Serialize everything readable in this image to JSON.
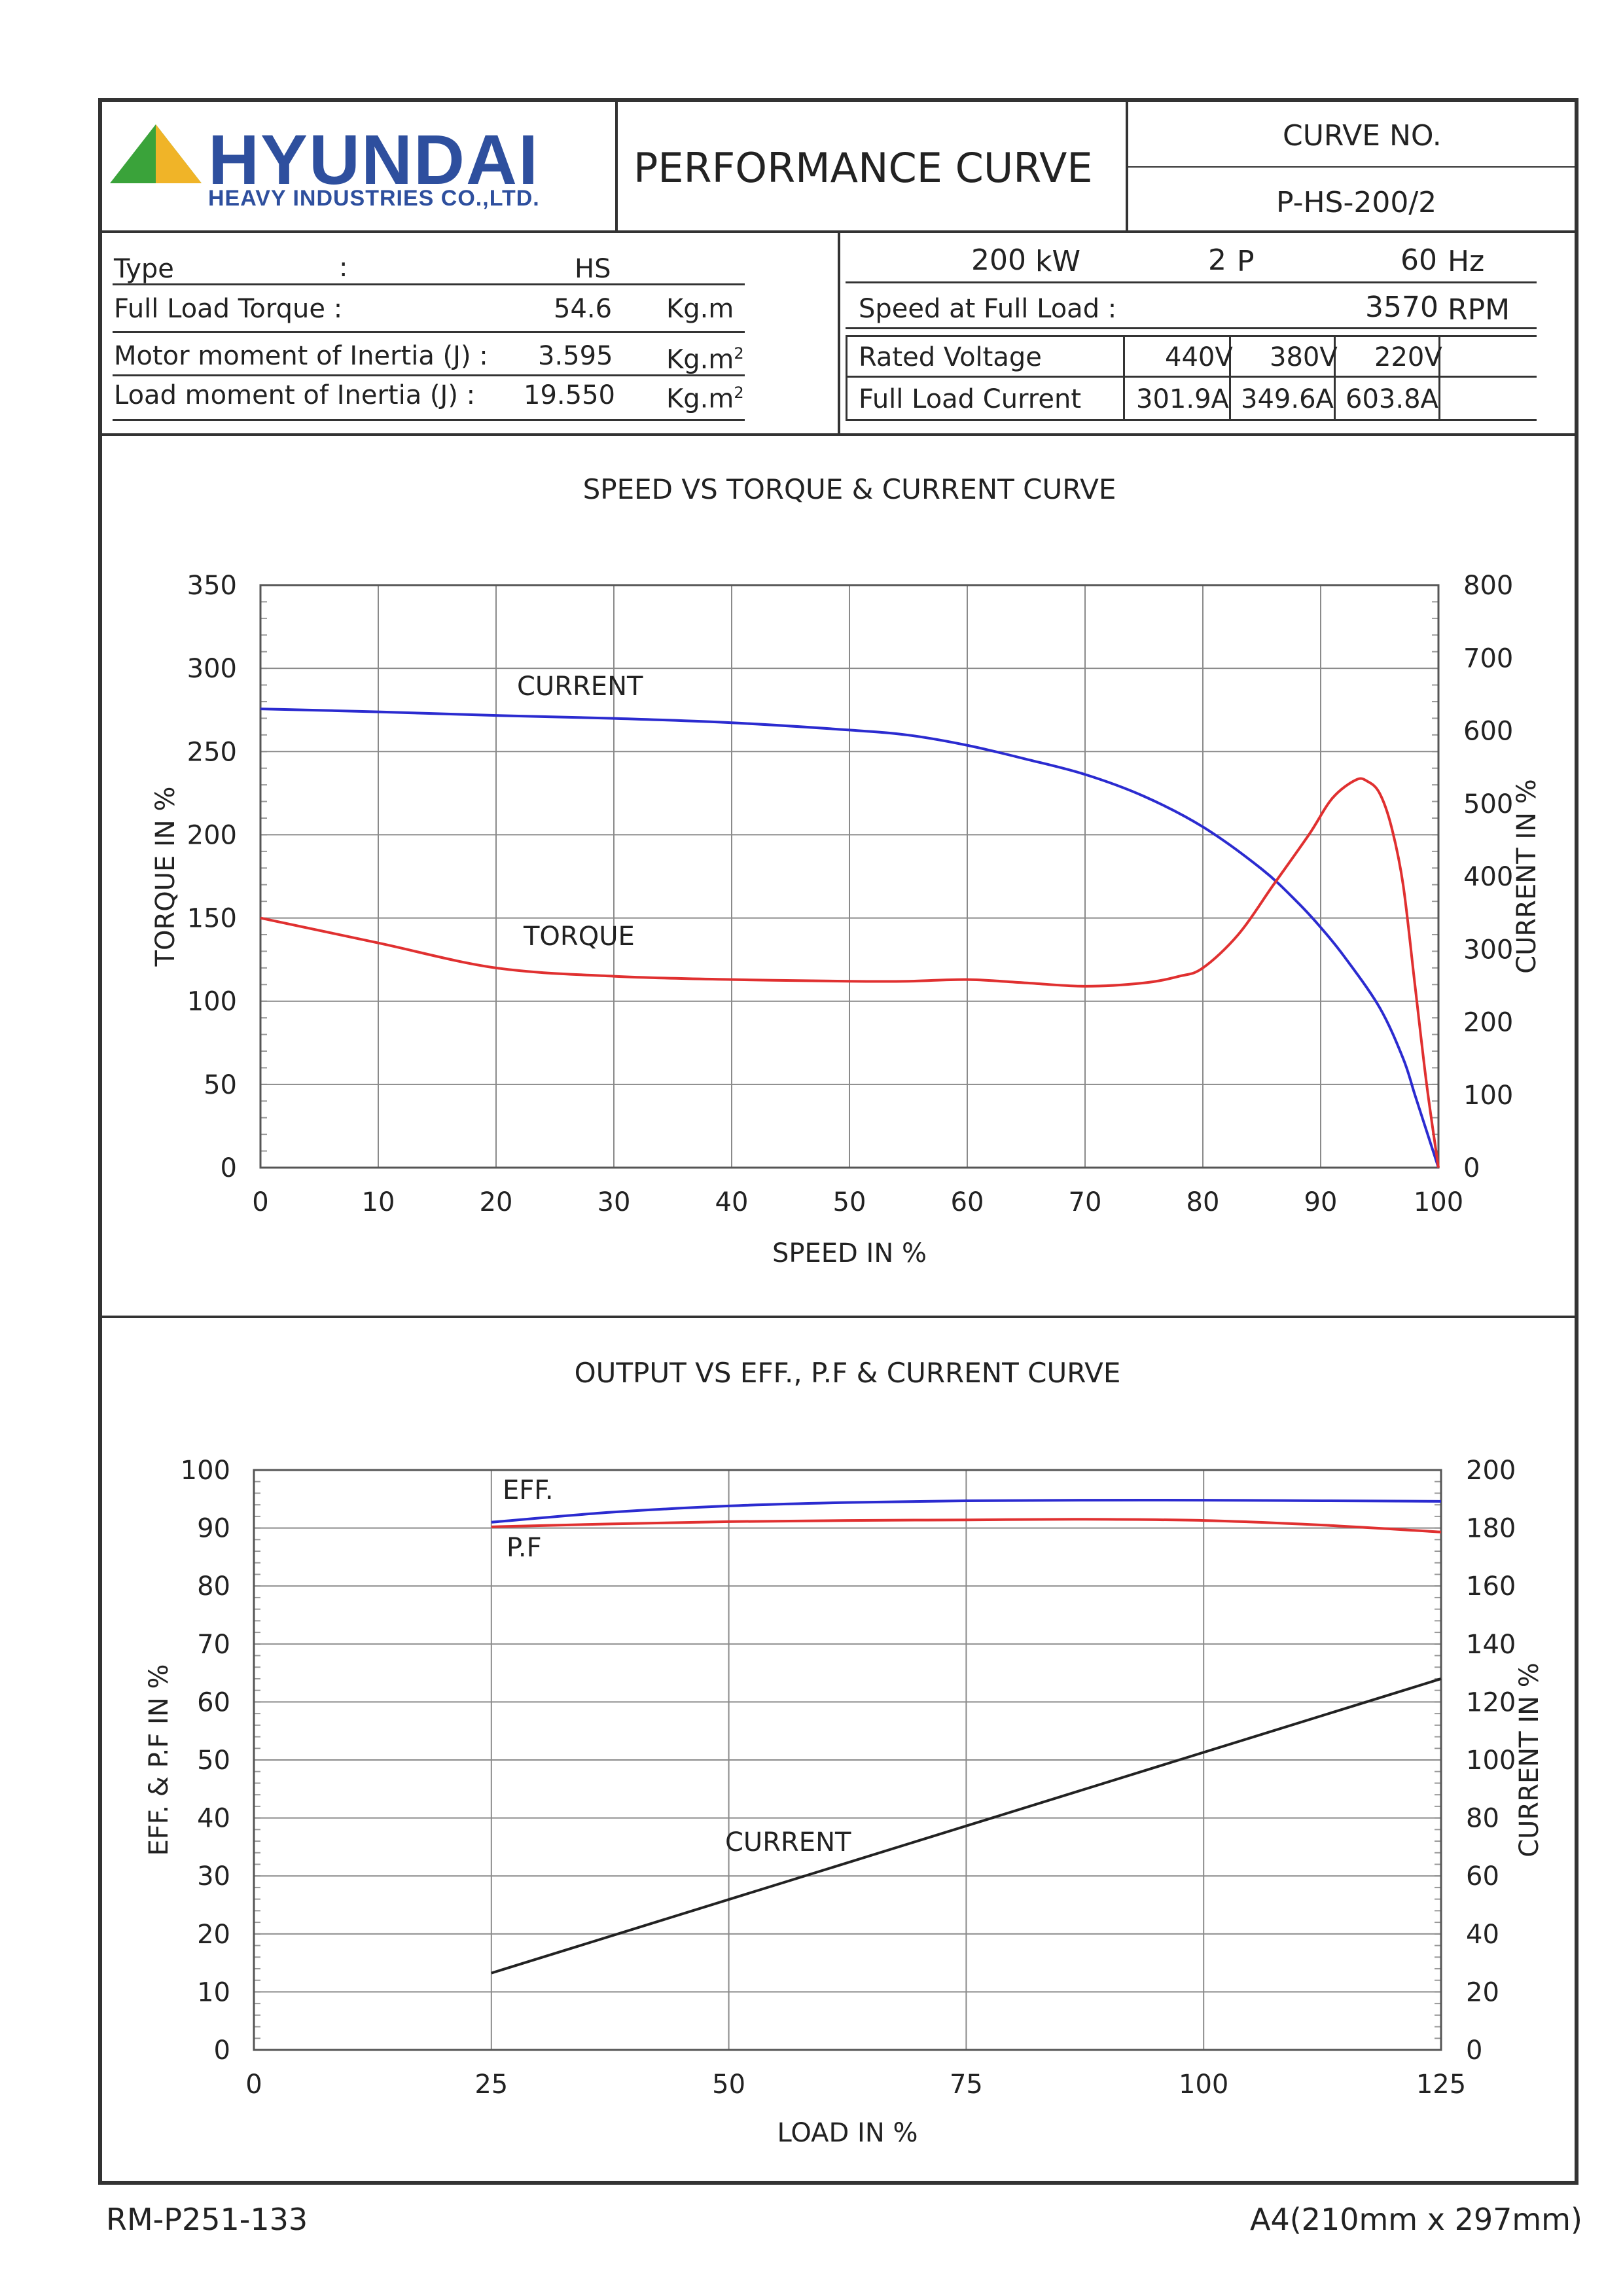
{
  "header": {
    "brand": "HYUNDAI",
    "brand_sub": "HEAVY INDUSTRIES CO.,LTD.",
    "doc_title": "PERFORMANCE CURVE",
    "curve_no_label": "CURVE NO.",
    "curve_no_value": "P-HS-200/2"
  },
  "specs_left": {
    "type_label": "Type",
    "type_colon": ":",
    "type_value": "HS",
    "torque_label": "Full Load Torque :",
    "torque_value": "54.6",
    "torque_unit": "Kg.m",
    "motor_inertia_label": "Motor moment of Inertia (J) :",
    "motor_inertia_value": "3.595",
    "load_inertia_label": "Load moment of Inertia (J) :",
    "load_inertia_value": "19.550",
    "inertia_unit": "Kg.m",
    "inertia_unit_sup": "2"
  },
  "specs_right": {
    "power_value": "200",
    "power_unit": "kW",
    "poles_value": "2",
    "poles_unit": "P",
    "freq_value": "60",
    "freq_unit": "Hz",
    "speed_label": "Speed at Full Load :",
    "speed_value": "3570",
    "speed_unit": "RPM",
    "voltage_label": "Rated Voltage",
    "current_label": "Full Load Current",
    "voltages": [
      "440V",
      "380V",
      "220V"
    ],
    "currents": [
      "301.9A",
      "349.6A",
      "603.8A"
    ]
  },
  "colors": {
    "blue_curve": "#2b2bd0",
    "red_curve": "#e03030",
    "black_curve": "#222222",
    "logo_blue": "#2e4f9e",
    "logo_green": "#3aa33a",
    "logo_yellow": "#f0b428"
  },
  "footer": {
    "left": "RM-P251-133",
    "right": "A4(210mm x 297mm)"
  },
  "chart_data": [
    {
      "type": "line",
      "title": "SPEED VS TORQUE & CURRENT CURVE",
      "xlabel": "SPEED IN %",
      "ylabel": "TORQUE IN %",
      "y2label": "CURRENT IN %",
      "xlim": [
        0,
        100
      ],
      "ylim": [
        0,
        350
      ],
      "y2lim": [
        0,
        800
      ],
      "xticks": [
        0,
        10,
        20,
        30,
        40,
        50,
        60,
        70,
        80,
        90,
        100
      ],
      "yticks": [
        0,
        50,
        100,
        150,
        200,
        250,
        300,
        350
      ],
      "y2ticks": [
        0,
        100,
        200,
        300,
        400,
        500,
        600,
        700,
        800
      ],
      "grid": true,
      "series": [
        {
          "name": "CURRENT",
          "axis": "right",
          "color": "#2b2bd0",
          "x": [
            0,
            10,
            20,
            30,
            40,
            50,
            55,
            60,
            65,
            70,
            75,
            80,
            85,
            88,
            90,
            92,
            95,
            97,
            98,
            99,
            100
          ],
          "y": [
            630,
            626,
            621,
            617,
            611,
            601,
            594,
            580,
            561,
            540,
            510,
            468,
            410,
            365,
            330,
            290,
            220,
            150,
            100,
            50,
            0
          ]
        },
        {
          "name": "TORQUE",
          "axis": "left",
          "color": "#e03030",
          "x": [
            0,
            10,
            20,
            30,
            40,
            50,
            55,
            60,
            65,
            70,
            75,
            78,
            80,
            83,
            86,
            89,
            91,
            93,
            94,
            95,
            96,
            97,
            98,
            99,
            100
          ],
          "y": [
            150,
            135,
            120,
            115,
            113,
            112,
            112,
            113,
            111,
            109,
            111,
            115,
            120,
            140,
            170,
            200,
            222,
            233,
            232,
            225,
            205,
            170,
            110,
            50,
            0
          ]
        }
      ]
    },
    {
      "type": "line",
      "title": "OUTPUT VS EFF., P.F & CURRENT CURVE",
      "xlabel": "LOAD IN %",
      "ylabel": "EFF. & P.F IN %",
      "y2label": "CURRENT IN %",
      "xlim": [
        0,
        125
      ],
      "ylim": [
        0,
        100
      ],
      "y2lim": [
        0,
        200
      ],
      "xticks": [
        0,
        25,
        50,
        75,
        100,
        125
      ],
      "yticks": [
        0,
        10,
        20,
        30,
        40,
        50,
        60,
        70,
        80,
        90,
        100
      ],
      "y2ticks": [
        0,
        20,
        40,
        60,
        80,
        100,
        120,
        140,
        160,
        180,
        200
      ],
      "grid": true,
      "series": [
        {
          "name": "EFF.",
          "axis": "left",
          "color": "#2b2bd0",
          "x": [
            25,
            37.5,
            50,
            62.5,
            75,
            87.5,
            100,
            112.5,
            125
          ],
          "y": [
            91.0,
            92.7,
            93.8,
            94.4,
            94.7,
            94.8,
            94.8,
            94.7,
            94.6
          ]
        },
        {
          "name": "P.F",
          "axis": "left",
          "color": "#e03030",
          "x": [
            25,
            37.5,
            50,
            62.5,
            75,
            87.5,
            100,
            112.5,
            125
          ],
          "y": [
            90.2,
            90.7,
            91.1,
            91.3,
            91.4,
            91.5,
            91.3,
            90.5,
            89.3
          ]
        },
        {
          "name": "CURRENT",
          "axis": "right",
          "color": "#222222",
          "x": [
            25,
            125
          ],
          "y": [
            26.5,
            128
          ]
        }
      ]
    }
  ]
}
